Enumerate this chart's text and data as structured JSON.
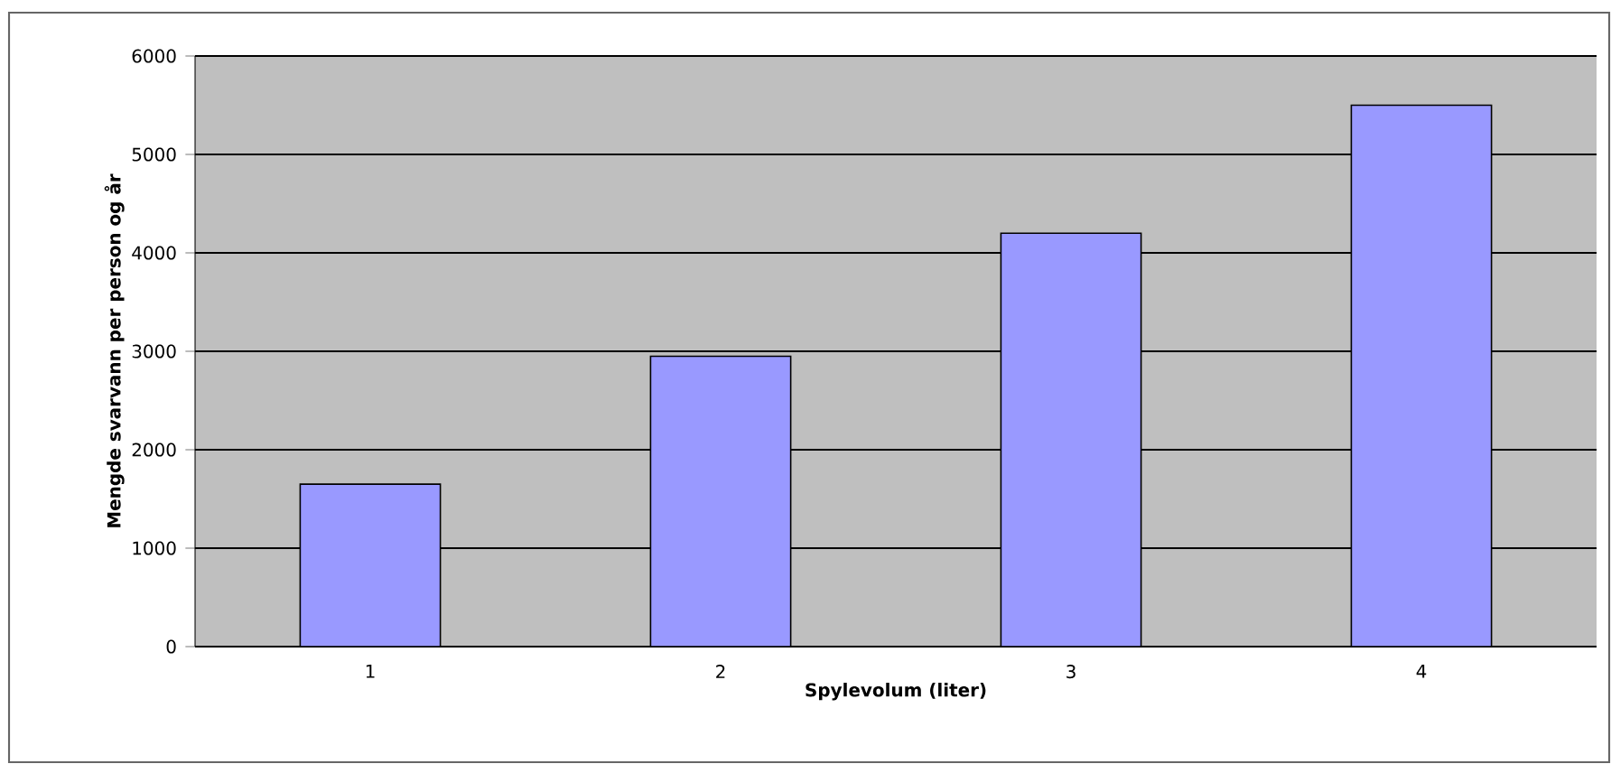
{
  "chart_data": {
    "type": "bar",
    "xlabel": "Spylevolum (liter)",
    "ylabel": "Mengde svarvann per person og år",
    "categories": [
      "1",
      "2",
      "3",
      "4"
    ],
    "values": [
      1650,
      2950,
      4200,
      5500
    ],
    "color": "#9999ff",
    "ylim": [
      0,
      6000
    ],
    "yticks": [
      0,
      1000,
      2000,
      3000,
      4000,
      5000,
      6000
    ],
    "grid": "y"
  }
}
